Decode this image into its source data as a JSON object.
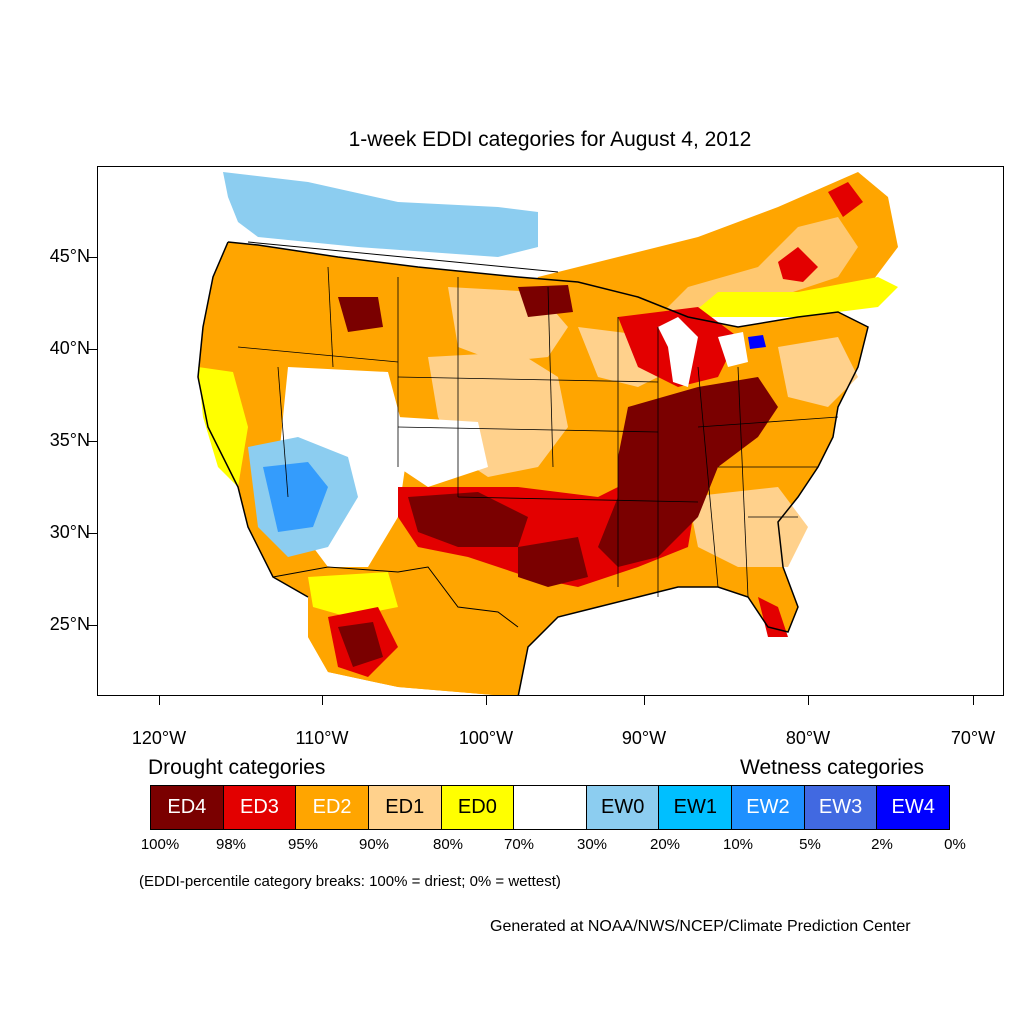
{
  "title": "1-week EDDI categories for August 4, 2012",
  "lat_labels": [
    "45°N",
    "40°N",
    "35°N",
    "30°N",
    "25°N"
  ],
  "lon_labels": [
    "120°W",
    "110°W",
    "100°W",
    "90°W",
    "80°W",
    "70°W"
  ],
  "legend": {
    "drought_heading": "Drought categories",
    "wetness_heading": "Wetness categories",
    "categories": [
      {
        "label": "ED4",
        "color": "#7a0000",
        "text_color": "#ffffff"
      },
      {
        "label": "ED3",
        "color": "#e30000",
        "text_color": "#ffffff"
      },
      {
        "label": "ED2",
        "color": "#ffa500",
        "text_color": "#ffffff"
      },
      {
        "label": "ED1",
        "color": "#ffd18c",
        "text_color": "#000000"
      },
      {
        "label": "ED0",
        "color": "#ffff00",
        "text_color": "#000000"
      },
      {
        "label": "",
        "color": "#ffffff",
        "text_color": "#000000"
      },
      {
        "label": "EW0",
        "color": "#8ccdf0",
        "text_color": "#000000"
      },
      {
        "label": "EW1",
        "color": "#00bfff",
        "text_color": "#000000"
      },
      {
        "label": "EW2",
        "color": "#1e90ff",
        "text_color": "#ffffff"
      },
      {
        "label": "EW3",
        "color": "#4169e1",
        "text_color": "#ffffff"
      },
      {
        "label": "EW4",
        "color": "#0000ff",
        "text_color": "#ffffff"
      }
    ],
    "breaks": [
      "100%",
      "98%",
      "95%",
      "90%",
      "80%",
      "70%",
      "30%",
      "20%",
      "10%",
      "5%",
      "2%",
      "0%"
    ]
  },
  "footnote": "(EDDI-percentile category breaks: 100% = driest; 0% = wettest)",
  "credit": "Generated at NOAA/NWS/NCEP/Climate Prediction Center"
}
